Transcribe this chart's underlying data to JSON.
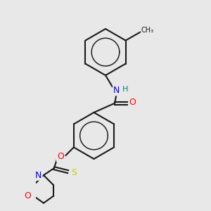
{
  "background_color": "#e8e8e8",
  "bond_color": "#1a1a1a",
  "title": "",
  "atom_colors": {
    "O": "#ff0000",
    "N": "#0000ff",
    "S": "#cccc00",
    "H": "#008080",
    "C": "#1a1a1a"
  },
  "figsize": [
    3.0,
    3.0
  ],
  "dpi": 100
}
